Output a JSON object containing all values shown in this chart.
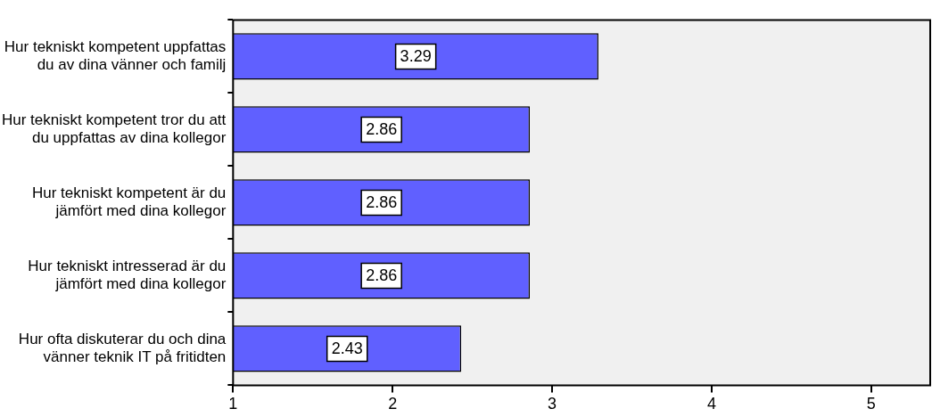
{
  "chart_data": {
    "type": "bar",
    "orientation": "horizontal",
    "categories": [
      "Hur tekniskt kompetent uppfattas du av dina vänner och familj",
      "Hur tekniskt kompetent tror du att du uppfattas av dina kollegor",
      "Hur tekniskt kompetent är du jämfört med dina kollegor",
      "Hur tekniskt intresserad är du jämfört med dina kollegor",
      "Hur ofta diskuterar du och dina vänner teknik IT på fritidten"
    ],
    "values": [
      3.29,
      2.86,
      2.86,
      2.86,
      2.43
    ],
    "color": "#6060ff",
    "xlim": [
      1,
      5.37
    ],
    "xticks": [
      1,
      2,
      3,
      4,
      5
    ],
    "grid": false,
    "data_labels": true,
    "legend": false
  }
}
